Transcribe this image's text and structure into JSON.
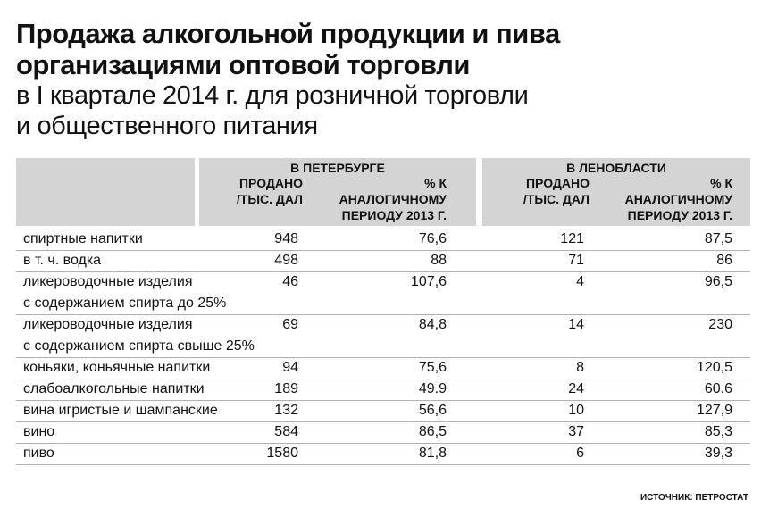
{
  "title": {
    "line1": "Продажа алкогольной продукции и пива",
    "line2": "организациями оптовой торговли",
    "line3": "в I квартале 2014 г. для розничной торговли",
    "line4": "и общественного питания"
  },
  "headers": {
    "group1": "В ПЕТЕРБУРГЕ",
    "group2": "В ЛЕНОБЛАСТИ",
    "sold_line1": "ПРОДАНО",
    "sold_line2": "/ТЫС. ДАЛ",
    "pct_line1": "% К",
    "pct_line2": "АНАЛОГИЧНОМУ",
    "pct_line3": "ПЕРИОДУ 2013 Г."
  },
  "source": "ИСТОЧНИК: ПЕТРОСТАТ",
  "chart_data": {
    "type": "table",
    "columns": [
      "",
      "В ПЕТЕРБУРГЕ ПРОДАНО /ТЫС. ДАЛ",
      "В ПЕТЕРБУРГЕ % К АНАЛОГИЧНОМУ ПЕРИОДУ 2013 Г.",
      "В ЛЕНОБЛАСТИ ПРОДАНО /ТЫС. ДАЛ",
      "В ЛЕНОБЛАСТИ % К АНАЛОГИЧНОМУ ПЕРИОДУ 2013 Г."
    ],
    "rows": [
      {
        "label": "спиртные напитки",
        "label2": "",
        "spb_sold": "948",
        "spb_pct": "76,6",
        "lo_sold": "121",
        "lo_pct": "87,5"
      },
      {
        "label": "в т. ч. водка",
        "label2": "",
        "spb_sold": "498",
        "spb_pct": "88",
        "lo_sold": "71",
        "lo_pct": "86"
      },
      {
        "label": "ликероводочные изделия",
        "label2": "с содержанием спирта до 25%",
        "spb_sold": "46",
        "spb_pct": "107,6",
        "lo_sold": "4",
        "lo_pct": "96,5"
      },
      {
        "label": "ликероводочные изделия",
        "label2": "с содержанием спирта свыше 25%",
        "spb_sold": "69",
        "spb_pct": "84,8",
        "lo_sold": "14",
        "lo_pct": "230"
      },
      {
        "label": "коньяки, коньячные напитки",
        "label2": "",
        "spb_sold": "94",
        "spb_pct": "75,6",
        "lo_sold": "8",
        "lo_pct": "120,5"
      },
      {
        "label": "слабоалкогольные напитки",
        "label2": "",
        "spb_sold": "189",
        "spb_pct": "49.9",
        "lo_sold": "24",
        "lo_pct": "60.6"
      },
      {
        "label": "вина игристые и шампанские",
        "label2": "",
        "spb_sold": "132",
        "spb_pct": "56,6",
        "lo_sold": "10",
        "lo_pct": "127,9"
      },
      {
        "label": "вино",
        "label2": "",
        "spb_sold": "584",
        "spb_pct": "86,5",
        "lo_sold": "37",
        "lo_pct": "85,3"
      },
      {
        "label": "пиво",
        "label2": "",
        "spb_sold": "1580",
        "spb_pct": "81,8",
        "lo_sold": "6",
        "lo_pct": "39,3"
      }
    ]
  }
}
